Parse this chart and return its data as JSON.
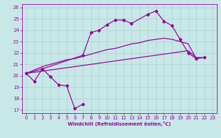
{
  "xlabel": "Windchill (Refroidissement éolien,°C)",
  "xlim": [
    -0.5,
    23.5
  ],
  "ylim": [
    16.7,
    26.3
  ],
  "yticks": [
    17,
    18,
    19,
    20,
    21,
    22,
    23,
    24,
    25,
    26
  ],
  "xticks": [
    0,
    1,
    2,
    3,
    4,
    5,
    6,
    7,
    8,
    9,
    10,
    11,
    12,
    13,
    14,
    15,
    16,
    17,
    18,
    19,
    20,
    21,
    22,
    23
  ],
  "bg_color": "#c8e8e8",
  "grid_color": "#aed4d4",
  "line_color": "#990099",
  "line1_x": [
    0,
    1,
    2,
    3,
    4,
    5,
    6,
    7
  ],
  "line1_y": [
    20.2,
    19.5,
    20.6,
    19.9,
    19.2,
    19.1,
    17.1,
    17.5
  ],
  "line2_x": [
    0,
    2,
    7,
    8,
    9,
    10,
    11,
    12,
    13,
    15,
    16,
    17,
    18,
    19,
    20,
    21,
    22
  ],
  "line2_y": [
    20.2,
    20.6,
    21.8,
    23.8,
    24.0,
    24.5,
    24.9,
    24.9,
    24.6,
    25.4,
    25.7,
    24.8,
    24.4,
    23.2,
    22.0,
    21.5,
    21.6
  ],
  "line3_x": [
    0,
    1,
    2,
    3,
    4,
    5,
    6,
    7,
    8,
    9,
    10,
    11,
    12,
    13,
    14,
    15,
    16,
    17,
    18,
    19,
    20,
    21
  ],
  "line3_y": [
    20.2,
    20.5,
    20.8,
    21.0,
    21.2,
    21.4,
    21.5,
    21.7,
    21.9,
    22.1,
    22.3,
    22.4,
    22.6,
    22.8,
    22.9,
    23.1,
    23.2,
    23.3,
    23.2,
    23.0,
    22.8,
    21.5
  ],
  "line4_x": [
    0,
    1,
    2,
    3,
    4,
    5,
    6,
    7,
    8,
    9,
    10,
    11,
    12,
    13,
    14,
    15,
    16,
    17,
    18,
    19,
    20,
    21,
    22
  ],
  "line4_y": [
    20.2,
    20.3,
    20.4,
    20.5,
    20.6,
    20.7,
    20.8,
    20.9,
    21.0,
    21.1,
    21.2,
    21.3,
    21.4,
    21.5,
    21.6,
    21.7,
    21.8,
    21.9,
    22.0,
    22.1,
    22.2,
    21.6,
    21.6
  ]
}
